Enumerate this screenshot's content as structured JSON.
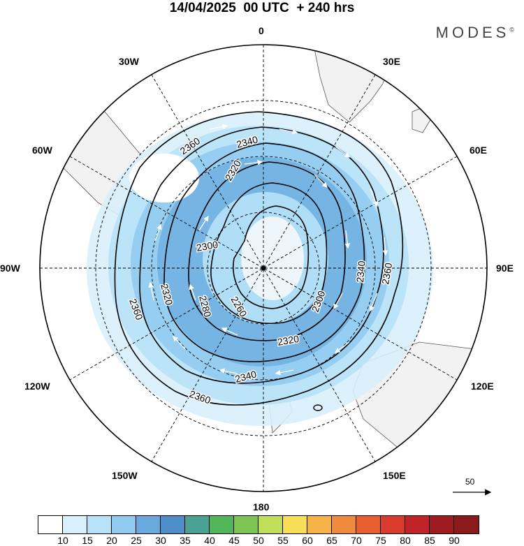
{
  "title": "14/04/2025  00 UTC  + 240 hrs",
  "brand": {
    "name": "MODES",
    "mark": "©"
  },
  "longitude_labels": [
    {
      "id": "0",
      "text": "0"
    },
    {
      "id": "30e",
      "text": "30E"
    },
    {
      "id": "60e",
      "text": "60E"
    },
    {
      "id": "90e",
      "text": "90E"
    },
    {
      "id": "120e",
      "text": "120E"
    },
    {
      "id": "150e",
      "text": "150E"
    },
    {
      "id": "180",
      "text": "180"
    },
    {
      "id": "150w",
      "text": "150W"
    },
    {
      "id": "120w",
      "text": "120W"
    },
    {
      "id": "90w",
      "text": "90W"
    },
    {
      "id": "60w",
      "text": "60W"
    },
    {
      "id": "30w",
      "text": "30W"
    }
  ],
  "contour_labels": [
    "2360",
    "2340",
    "2320",
    "2300",
    "2280",
    "2260"
  ],
  "reference_vector": {
    "value": "50"
  },
  "colorbar": {
    "labels": [
      "10",
      "15",
      "20",
      "25",
      "30",
      "35",
      "40",
      "45",
      "50",
      "55",
      "60",
      "65",
      "70",
      "75",
      "80",
      "85",
      "90"
    ],
    "colors": [
      "#ffffff",
      "#d8f0fc",
      "#b8e2f8",
      "#90cbef",
      "#6aa9dd",
      "#4e8ec8",
      "#4aa295",
      "#52b55a",
      "#7ec452",
      "#c2dd58",
      "#f7de58",
      "#f5b34a",
      "#ef8a3a",
      "#e8602e",
      "#da3c2c",
      "#c02428",
      "#9e1b1f",
      "#8a1a1c"
    ]
  },
  "map": {
    "projection": "polar-stereographic-south",
    "field": "wind speed (shaded) and geopotential height (contours) with wind vectors",
    "contour_levels": [
      2260,
      2280,
      2300,
      2320,
      2340,
      2360
    ]
  }
}
